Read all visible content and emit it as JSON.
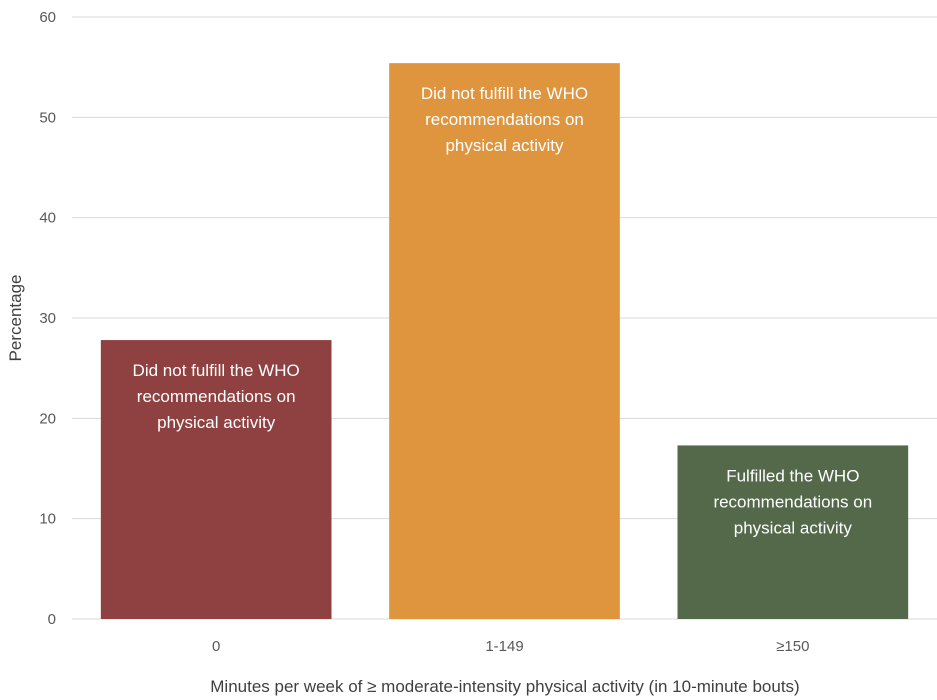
{
  "chart_data": {
    "type": "bar",
    "title": "",
    "xlabel": "Minutes per week of ≥ moderate-intensity physical activity (in 10-minute bouts)",
    "ylabel": "Percentage",
    "ylim": [
      0,
      60
    ],
    "yticks": [
      "0",
      "10",
      "20",
      "30",
      "40",
      "50",
      "60"
    ],
    "grid": true,
    "categories": [
      "0",
      "1-149",
      "≥150"
    ],
    "values": [
      27.8,
      55.4,
      17.3
    ],
    "colors": [
      "#8e4140",
      "#df943e",
      "#53694a"
    ],
    "bar_labels": [
      [
        "Did not fulfill the WHO",
        "recommendations on",
        "physical activity"
      ],
      [
        "Did not fulfill the WHO",
        "recommendations on",
        "physical activity"
      ],
      [
        "Fulfilled the WHO",
        "recommendations on",
        "physical activity"
      ]
    ]
  }
}
